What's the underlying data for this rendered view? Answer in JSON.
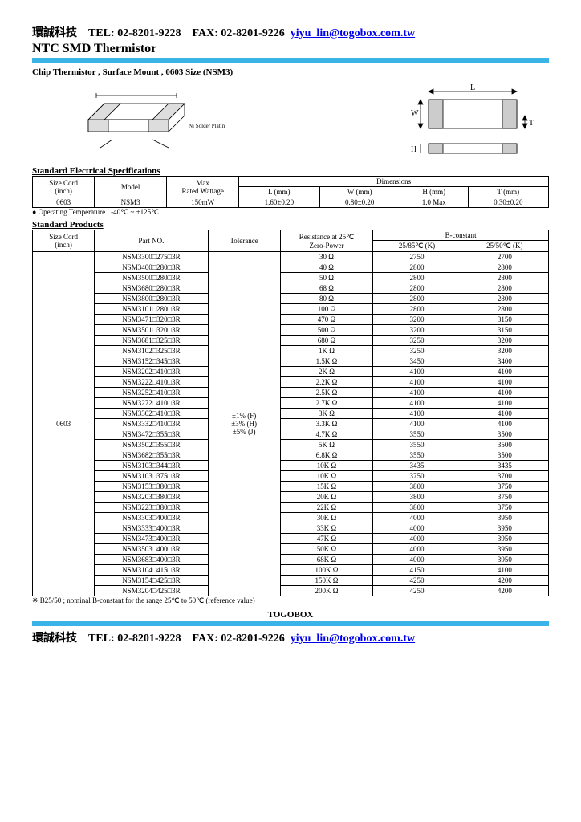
{
  "header": {
    "company": "環誠科技",
    "tel_label": "TEL:",
    "tel": "02-8201-9228",
    "fax_label": "FAX:",
    "fax": "02-8201-9226",
    "email": "yiyu_lin@togobox.com.tw"
  },
  "title": "NTC SMD Thermistor",
  "subtitle": "Chip Thermistor , Surface Mount , 0603 Size  (NSM3)",
  "diagram_labels": {
    "L": "L",
    "W": "W",
    "T": "T",
    "H": "H"
  },
  "spec_section": "Standard Electrical Specifications",
  "spec_table": {
    "h_sizecord": "Size Cord\n(inch)",
    "h_model": "Model",
    "h_maxwatt": "Max\nRated Wattage",
    "h_dim": "Dimensions",
    "h_L": "L (mm)",
    "h_W": "W (mm)",
    "h_H": "H (mm)",
    "h_T": "T (mm)",
    "r_size": "0603",
    "r_model": "NSM3",
    "r_watt": "150mW",
    "r_L": "1.60±0.20",
    "r_W": "0.80±0.20",
    "r_H": "1.0 Max",
    "r_T": "0.30±0.20"
  },
  "op_temp": "● Operating Temperature : -40℃ ~ +125℃",
  "prod_section": "Standard Products",
  "prod_table": {
    "h_sizecord": "Size Cord\n(inch)",
    "h_partno": "Part NO.",
    "h_tol": "Tolerance",
    "h_res": "Resistance at 25℃\nZero-Power",
    "h_bconst": "B-constant",
    "h_b1": "25/85℃ (K)",
    "h_b2": "25/50℃ (K)",
    "size": "0603",
    "tol": "±1% (F)\n±3% (H)\n±5% (J)",
    "rows": [
      {
        "p": "NSM3300□275□3R",
        "r": "30 Ω",
        "b1": "2750",
        "b2": "2700"
      },
      {
        "p": "NSM3400□280□3R",
        "r": "40 Ω",
        "b1": "2800",
        "b2": "2800"
      },
      {
        "p": "NSM3500□280□3R",
        "r": "50 Ω",
        "b1": "2800",
        "b2": "2800"
      },
      {
        "p": "NSM3680□280□3R",
        "r": "68 Ω",
        "b1": "2800",
        "b2": "2800"
      },
      {
        "p": "NSM3800□280□3R",
        "r": "80 Ω",
        "b1": "2800",
        "b2": "2800"
      },
      {
        "p": "NSM3101□280□3R",
        "r": "100 Ω",
        "b1": "2800",
        "b2": "2800"
      },
      {
        "p": "NSM3471□320□3R",
        "r": "470 Ω",
        "b1": "3200",
        "b2": "3150"
      },
      {
        "p": "NSM3501□320□3R",
        "r": "500 Ω",
        "b1": "3200",
        "b2": "3150"
      },
      {
        "p": "NSM3681□325□3R",
        "r": "680 Ω",
        "b1": "3250",
        "b2": "3200"
      },
      {
        "p": "NSM3102□325□3R",
        "r": "1K Ω",
        "b1": "3250",
        "b2": "3200"
      },
      {
        "p": "NSM3152□345□3R",
        "r": "1.5K Ω",
        "b1": "3450",
        "b2": "3400"
      },
      {
        "p": "NSM3202□410□3R",
        "r": "2K Ω",
        "b1": "4100",
        "b2": "4100"
      },
      {
        "p": "NSM3222□410□3R",
        "r": "2.2K Ω",
        "b1": "4100",
        "b2": "4100"
      },
      {
        "p": "NSM3252□410□3R",
        "r": "2.5K Ω",
        "b1": "4100",
        "b2": "4100"
      },
      {
        "p": "NSM3272□410□3R",
        "r": "2.7K Ω",
        "b1": "4100",
        "b2": "4100"
      },
      {
        "p": "NSM3302□410□3R",
        "r": "3K Ω",
        "b1": "4100",
        "b2": "4100"
      },
      {
        "p": "NSM3332□410□3R",
        "r": "3.3K Ω",
        "b1": "4100",
        "b2": "4100"
      },
      {
        "p": "NSM3472□355□3R",
        "r": "4.7K Ω",
        "b1": "3550",
        "b2": "3500"
      },
      {
        "p": "NSM3502□355□3R",
        "r": "5K Ω",
        "b1": "3550",
        "b2": "3500"
      },
      {
        "p": "NSM3682□355□3R",
        "r": "6.8K Ω",
        "b1": "3550",
        "b2": "3500"
      },
      {
        "p": "NSM3103□344□3R",
        "r": "10K Ω",
        "b1": "3435",
        "b2": "3435"
      },
      {
        "p": "NSM3103□375□3R",
        "r": "10K Ω",
        "b1": "3750",
        "b2": "3700"
      },
      {
        "p": "NSM3153□380□3R",
        "r": "15K Ω",
        "b1": "3800",
        "b2": "3750"
      },
      {
        "p": "NSM3203□380□3R",
        "r": "20K Ω",
        "b1": "3800",
        "b2": "3750"
      },
      {
        "p": "NSM3223□380□3R",
        "r": "22K Ω",
        "b1": "3800",
        "b2": "3750"
      },
      {
        "p": "NSM3303□400□3R",
        "r": "30K Ω",
        "b1": "4000",
        "b2": "3950"
      },
      {
        "p": "NSM3333□400□3R",
        "r": "33K Ω",
        "b1": "4000",
        "b2": "3950"
      },
      {
        "p": "NSM3473□400□3R",
        "r": "47K Ω",
        "b1": "4000",
        "b2": "3950"
      },
      {
        "p": "NSM3503□400□3R",
        "r": "50K Ω",
        "b1": "4000",
        "b2": "3950"
      },
      {
        "p": "NSM3683□400□3R",
        "r": "68K Ω",
        "b1": "4000",
        "b2": "3950"
      },
      {
        "p": "NSM3104□415□3R",
        "r": "100K Ω",
        "b1": "4150",
        "b2": "4100"
      },
      {
        "p": "NSM3154□425□3R",
        "r": "150K Ω",
        "b1": "4250",
        "b2": "4200"
      },
      {
        "p": "NSM3204□425□3R",
        "r": "200K Ω",
        "b1": "4250",
        "b2": "4200"
      }
    ]
  },
  "footnote": "※ B25/50 ; nominal B-constant for the range 25℃ to 50℃ (reference value)",
  "footer_brand": "TOGOBOX"
}
